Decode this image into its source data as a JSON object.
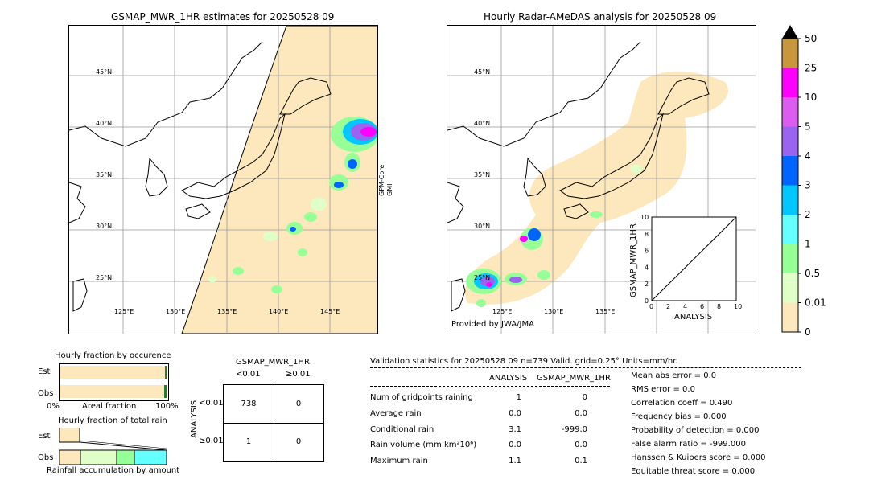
{
  "left_map": {
    "title": "GSMAP_MWR_1HR estimates for 20250528 09",
    "side_label_1": "GPM-Core",
    "side_label_2": "GMI",
    "lat_labels": [
      "45°N",
      "40°N",
      "35°N",
      "30°N",
      "25°N"
    ],
    "lon_labels": [
      "125°E",
      "130°E",
      "135°E",
      "140°E",
      "145°E"
    ]
  },
  "right_map": {
    "title": "Hourly Radar-AMeDAS analysis for 20250528 09",
    "credit": "Provided by JWA/JMA",
    "lat_labels": [
      "45°N",
      "40°N",
      "35°N",
      "30°N",
      "25°N"
    ],
    "lon_labels": [
      "125°E",
      "130°E",
      "135°E"
    ]
  },
  "colorbar": {
    "labels": [
      "50",
      "25",
      "10",
      "5",
      "4",
      "3",
      "2",
      "1",
      "0.5",
      "0.01",
      "0"
    ],
    "colors": [
      "#c8963c",
      "#ff00ff",
      "#dc5cf0",
      "#9a64f0",
      "#0064ff",
      "#00c8ff",
      "#64ffff",
      "#96ff96",
      "#e0ffc8",
      "#fde8be"
    ]
  },
  "inset": {
    "ylabel": "GSMAP_MWR_1HR",
    "xlabel": "ANALYSIS",
    "ticks": [
      "0",
      "2",
      "4",
      "6",
      "8",
      "10"
    ]
  },
  "occurrence": {
    "title": "Hourly fraction by occurence",
    "rows": [
      "Est",
      "Obs"
    ],
    "axis_left": "0%",
    "axis_mid": "Areal fraction",
    "axis_right": "100%"
  },
  "total_rain": {
    "title": "Hourly fraction of total rain",
    "rows": [
      "Est",
      "Obs"
    ],
    "footer": "Rainfall accumulation by amount"
  },
  "contingency": {
    "title": "GSMAP_MWR_1HR",
    "col_headers": [
      "<0.01",
      "≥0.01"
    ],
    "row_axis": "ANALYSIS",
    "row_headers": [
      "<0.01",
      "≥0.01"
    ],
    "cells": [
      [
        "738",
        "0"
      ],
      [
        "1",
        "0"
      ]
    ]
  },
  "validation": {
    "header": "Validation statistics for 20250528 09  n=739 Valid. grid=0.25° Units=mm/hr.",
    "col_analysis": "ANALYSIS",
    "col_gsmap": "GSMAP_MWR_1HR",
    "rows": [
      {
        "label": "Num of gridpoints raining",
        "analysis": "1",
        "gsmap": "0"
      },
      {
        "label": "Average rain",
        "analysis": "0.0",
        "gsmap": "0.0"
      },
      {
        "label": "Conditional rain",
        "analysis": "3.1",
        "gsmap": "-999.0"
      },
      {
        "label": "Rain volume (mm km²10⁶)",
        "analysis": "0.0",
        "gsmap": "0.0"
      },
      {
        "label": "Maximum rain",
        "analysis": "1.1",
        "gsmap": "0.1"
      }
    ],
    "scores": [
      "Mean abs error =    0.0",
      "RMS error =    0.0",
      "Correlation coeff =  0.490",
      "Frequency bias =  0.000",
      "Probability of detection =  0.000",
      "False alarm ratio = -999.000",
      "Hanssen & Kuipers score =  0.000",
      "Equitable threat score =  0.000"
    ]
  },
  "chart_data": [
    {
      "type": "table",
      "title": "GSMAP_MWR_1HR",
      "row_axis": "ANALYSIS",
      "columns": [
        "<0.01",
        "≥0.01"
      ],
      "rows": [
        "<0.01",
        "≥0.01"
      ],
      "values": [
        [
          738,
          0
        ],
        [
          1,
          0
        ]
      ]
    },
    {
      "type": "scatter",
      "xlabel": "ANALYSIS",
      "ylabel": "GSMAP_MWR_1HR",
      "xlim": [
        0,
        10
      ],
      "ylim": [
        0,
        10
      ]
    },
    {
      "type": "bar",
      "title": "Hourly fraction by occurence",
      "categories": [
        "Est",
        "Obs"
      ],
      "series": [
        {
          "values": [
            0.99,
            0.99
          ]
        },
        {
          "values": [
            0.01,
            0.01
          ]
        }
      ]
    },
    {
      "type": "bar",
      "title": "Hourly fraction of total rain",
      "categories": [
        "Est",
        "Obs"
      ],
      "series": [
        {
          "values": [
            0.19,
            0.2
          ]
        },
        {
          "values": [
            0,
            0.34
          ]
        },
        {
          "values": [
            0,
            0.16
          ]
        },
        {
          "values": [
            0,
            0.3
          ]
        }
      ]
    }
  ]
}
